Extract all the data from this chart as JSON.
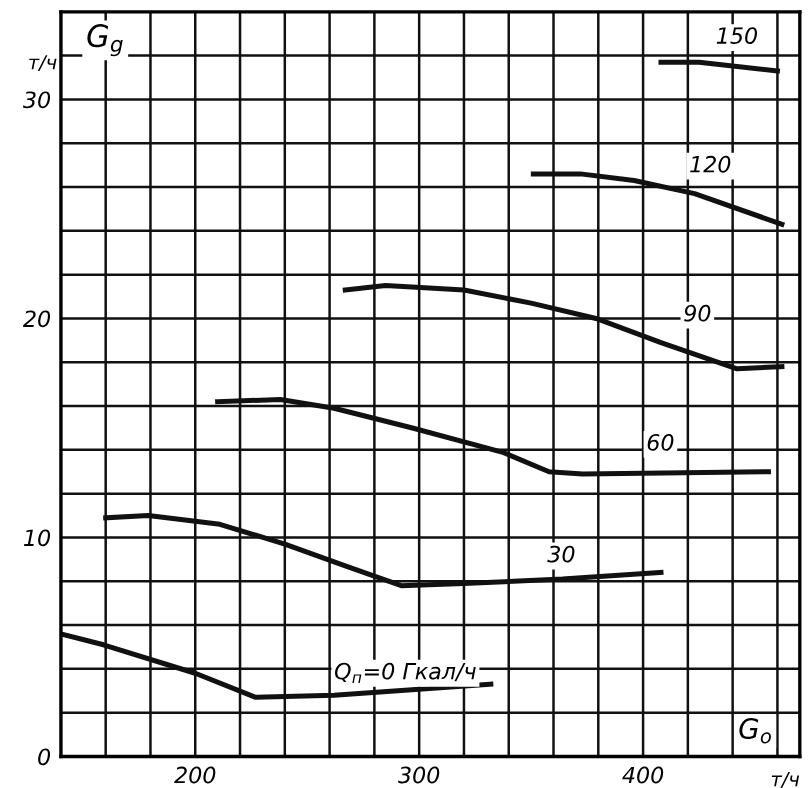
{
  "chart_data": {
    "type": "line",
    "xlabel": "G$_{o}$",
    "ylabel": "G$_{g}$",
    "xlim": [
      140,
      470
    ],
    "ylim": [
      0,
      34
    ],
    "xticks": [
      {
        "value": 140,
        "label": null
      },
      {
        "value": 160,
        "label": null
      },
      {
        "value": 180,
        "label": null
      },
      200,
      {
        "value": 220,
        "label": null
      },
      {
        "value": 240,
        "label": null
      },
      {
        "value": 260,
        "label": null
      },
      {
        "value": 280,
        "label": null
      },
      300,
      {
        "value": 320,
        "label": null
      },
      {
        "value": 340,
        "label": null
      },
      {
        "value": 360,
        "label": null
      },
      {
        "value": 380,
        "label": null
      },
      400,
      {
        "value": 420,
        "label": null
      },
      {
        "value": 440,
        "label": null
      },
      {
        "value": 460,
        "label": null
      }
    ],
    "yticks": [
      0,
      {
        "value": 2,
        "label": null
      },
      {
        "value": 4,
        "label": null
      },
      {
        "value": 6,
        "label": null
      },
      {
        "value": 8,
        "label": null
      },
      10,
      {
        "value": 12,
        "label": null
      },
      {
        "value": 14,
        "label": null
      },
      {
        "value": 16,
        "label": null
      },
      {
        "value": 18,
        "label": null
      },
      20,
      {
        "value": 22,
        "label": null
      },
      {
        "value": 24,
        "label": null
      },
      {
        "value": 26,
        "label": null
      },
      {
        "value": 28,
        "label": null
      },
      30,
      {
        "value": 32,
        "label": null
      }
    ],
    "grid": true,
    "marker": "none",
    "line_style": "solid",
    "series": [
      {
        "name": "Q$_{п}$=0 Гкал/ч",
        "color": "#111111",
        "x": [
          140,
          159,
          200,
          227,
          262,
          332
        ],
        "values": [
          5.6,
          5.1,
          3.8,
          2.7,
          2.8,
          3.3
        ]
      },
      {
        "name": "30",
        "color": "#111111",
        "x": [
          160,
          179,
          211,
          240,
          267,
          292,
          320,
          364,
          408
        ],
        "values": [
          10.9,
          11.0,
          10.6,
          9.7,
          8.7,
          7.8,
          7.9,
          8.1,
          8.4
        ]
      },
      {
        "name": "60",
        "color": "#111111",
        "x": [
          210,
          238,
          262,
          297,
          337,
          358,
          373,
          456
        ],
        "values": [
          16.2,
          16.3,
          15.9,
          15.0,
          13.9,
          13.0,
          12.9,
          13.0
        ]
      },
      {
        "name": "90",
        "color": "#111111",
        "x": [
          267,
          285,
          320,
          350,
          379,
          408,
          442,
          462
        ],
        "values": [
          21.3,
          21.5,
          21.3,
          20.7,
          20.0,
          18.9,
          17.7,
          17.8
        ]
      },
      {
        "name": "120",
        "color": "#111111",
        "x": [
          351,
          372,
          396,
          423,
          462
        ],
        "values": [
          26.6,
          26.6,
          26.3,
          25.7,
          24.3
        ]
      },
      {
        "name": "150",
        "color": "#111111",
        "x": [
          408,
          425,
          460
        ],
        "values": [
          31.7,
          31.7,
          31.3
        ]
      }
    ],
    "annotations": [
      "т/ч",
      "т/ч"
    ]
  }
}
